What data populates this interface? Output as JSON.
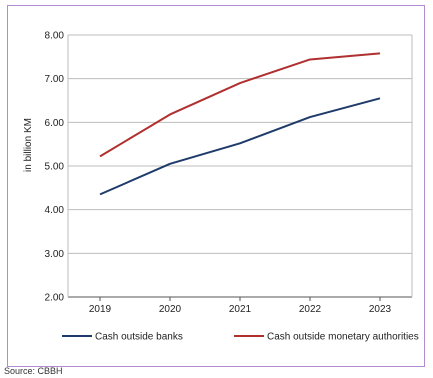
{
  "chart_data": {
    "type": "line",
    "x": [
      "2019",
      "2020",
      "2021",
      "2022",
      "2023"
    ],
    "ylabel": "in billion KM",
    "ylim": [
      2.0,
      8.0
    ],
    "yticks": [
      "2.00",
      "3.00",
      "4.00",
      "5.00",
      "6.00",
      "7.00",
      "8.00"
    ],
    "grid": true,
    "legend_position": "bottom",
    "series": [
      {
        "name": "Cash outside banks",
        "color": "#1f3b6b",
        "values": [
          4.35,
          5.05,
          5.52,
          6.12,
          6.55
        ]
      },
      {
        "name": "Cash outside monetary authorities",
        "color": "#b03030",
        "values": [
          5.22,
          6.18,
          6.9,
          7.44,
          7.58
        ]
      }
    ]
  },
  "source": "Source: CBBH"
}
